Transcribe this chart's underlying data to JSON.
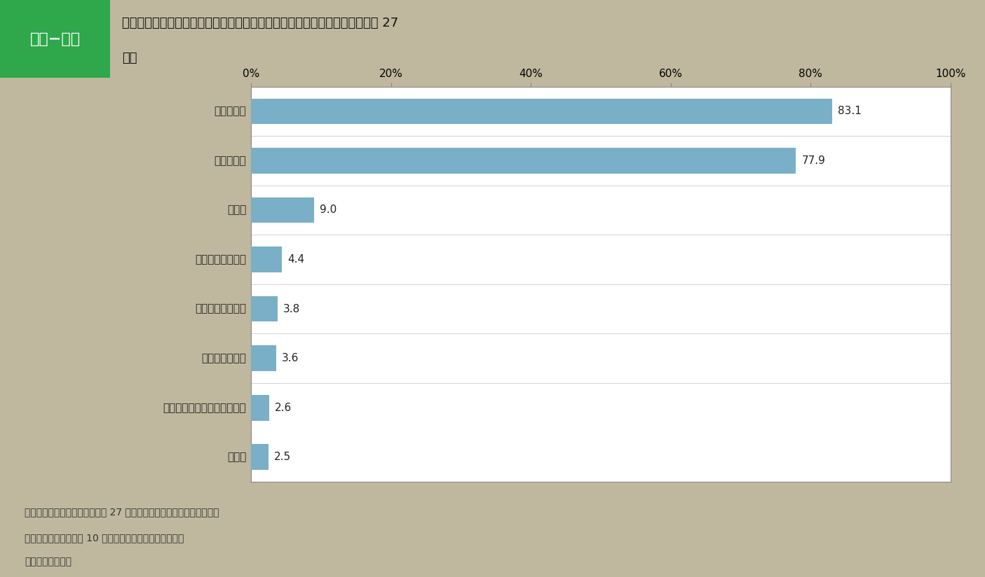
{
  "categories": [
    "家族・友人",
    "上司・同僚",
    "産業医",
    "保健師又は看護師",
    "産業医以外の医師",
    "カウンセラー等",
    "衛生管理者又は衛生推進者等",
    "その他"
  ],
  "values": [
    83.1,
    77.9,
    9.0,
    4.4,
    3.8,
    3.6,
    2.6,
    2.5
  ],
  "bar_color": "#7aafc8",
  "bg_color": "#bfb89e",
  "plot_bg_color": "#ffffff",
  "header_bg_color": "#ffffff",
  "tag_bg_color": "#2ea84a",
  "tag_text_color": "#ffffff",
  "tag_text": "第２−４図",
  "title_line1": "「相談できる人がいる」とした労働者のうち労働者が挙げた相談相手（平成 27",
  "title_line2": "年）",
  "xlim": [
    0,
    100
  ],
  "xtick_values": [
    0,
    20,
    40,
    60,
    80,
    100
  ],
  "xtick_labels": [
    "0%",
    "20%",
    "40%",
    "60%",
    "80%",
    "100%"
  ],
  "footnote_line1": "（資料出所）厚生労働省「平成 27 年労働安全衛生調査（実態調査）」",
  "footnote_line2": "（注）１．常用労働者 10 人以上を雇用する事業所を対象",
  "footnote_line3": "　　２．複数回答",
  "value_fontsize": 11,
  "tick_fontsize": 11,
  "label_fontsize": 11,
  "footnote_fontsize": 10,
  "tag_fontsize": 16,
  "title_fontsize": 13
}
